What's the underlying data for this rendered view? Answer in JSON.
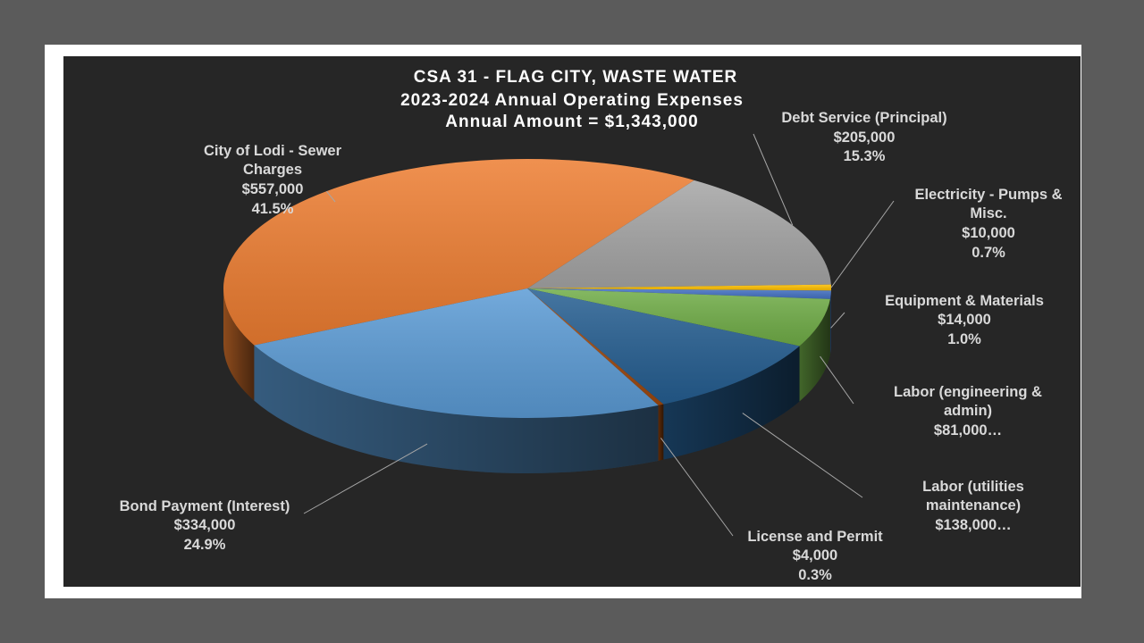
{
  "chart_data": {
    "type": "pie",
    "style": "3d",
    "title_lines": [
      "CSA 31 - FLAG CITY, WASTE WATER",
      "2023-2024 Annual Operating Expenses",
      "Annual Amount = $1,343,000"
    ],
    "legend": "none",
    "slices": [
      {
        "name_lines": [
          "City of Lodi - Sewer",
          "Charges"
        ],
        "value_label": "$557,000",
        "pct_label": "41.5%",
        "value": 557000,
        "color": "#ed7d31"
      },
      {
        "name_lines": [
          "Debt Service (Principal)"
        ],
        "value_label": "$205,000",
        "pct_label": "15.3%",
        "value": 205000,
        "color": "#a5a5a5"
      },
      {
        "name_lines": [
          "Electricity - Pumps &",
          "Misc."
        ],
        "value_label": "$10,000",
        "pct_label": "0.7%",
        "value": 10000,
        "color": "#ffc000"
      },
      {
        "name_lines": [
          "Equipment & Materials"
        ],
        "value_label": "$14,000",
        "pct_label": "1.0%",
        "value": 14000,
        "color": "#4472c4"
      },
      {
        "name_lines": [
          "Labor (engineering &",
          "admin)"
        ],
        "value_label": "$81,000…",
        "pct_label": "",
        "value": 81000,
        "color": "#70ad47"
      },
      {
        "name_lines": [
          "Labor (utilities",
          "maintenance)"
        ],
        "value_label": "$138,000…",
        "pct_label": "",
        "value": 138000,
        "color": "#255e91"
      },
      {
        "name_lines": [
          "License and Permit"
        ],
        "value_label": "$4,000",
        "pct_label": "0.3%",
        "value": 4000,
        "color": "#9e480e"
      },
      {
        "name_lines": [
          "Bond Payment (Interest)"
        ],
        "value_label": "$334,000",
        "pct_label": "24.9%",
        "value": 334000,
        "color": "#5b9bd5"
      }
    ]
  }
}
